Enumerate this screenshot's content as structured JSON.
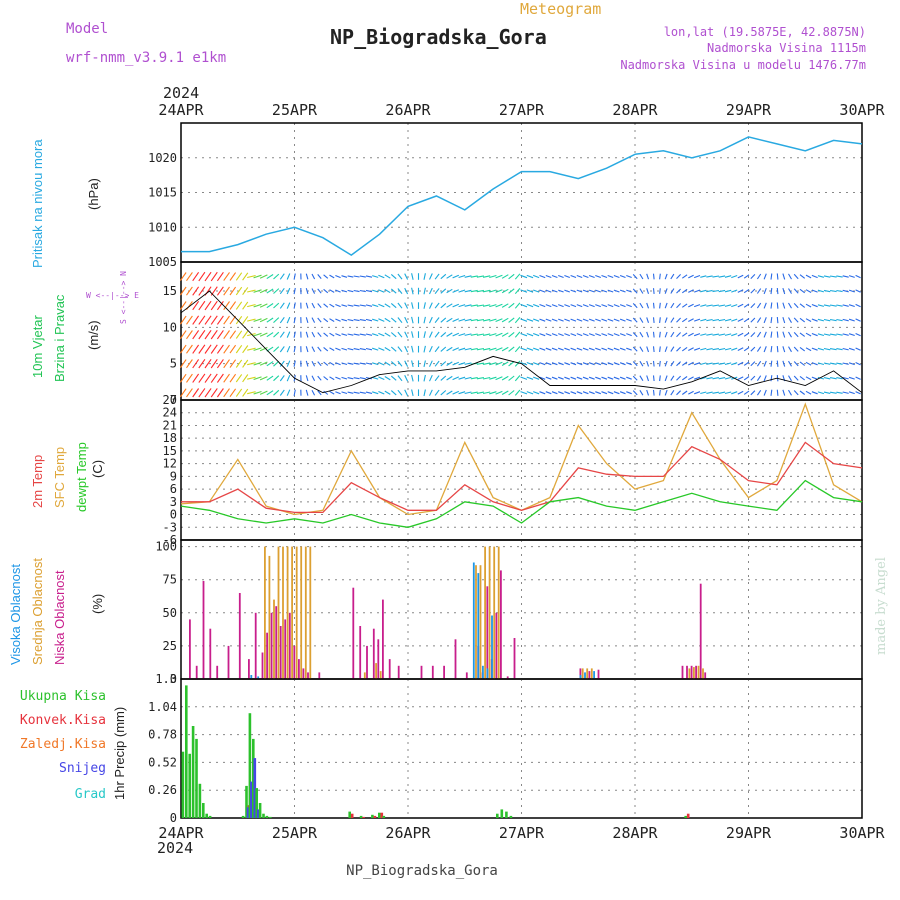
{
  "header": {
    "model_label": "Model",
    "model_name": "wrf-nmm_v3.9.1 e1km",
    "product": "Meteogram",
    "station": "NP_Biogradska_Gora",
    "coords": "lon,lat (19.5875E, 42.8875N)",
    "altitude": "Nadmorska Visina 1115m",
    "model_altitude": "Nadmorska Visina u modelu 1476.77m",
    "year_top": "2024",
    "year_bottom": "2024",
    "footer_station": "NP_Biogradska_Gora",
    "credit": "made by Angel"
  },
  "colors": {
    "pressure": "#29a9e1",
    "precip_total": "#2cc12c",
    "precip_conv": "#e6323c",
    "precip_frozen": "#f07828",
    "snow": "#4646e6",
    "graupel": "#28c8c8",
    "temp_2m": "#e64646",
    "temp_sfc": "#e0a83c",
    "dewpoint": "#28c828",
    "cloud_high": "#1e96e6",
    "cloud_mid": "#dca032",
    "cloud_low": "#c81e8c",
    "wind_label": "#22c455",
    "wind_axis": "#b050d0"
  },
  "chart_data": [
    {
      "type": "line",
      "panel": "pressure",
      "ylabel_1": "Pritisak na nivou mora",
      "ylabel_2": "(hPa)",
      "ylim": [
        1005,
        1025
      ],
      "yticks": [
        1005,
        1010,
        1015,
        1020
      ],
      "x_unit": "day offset from 24APR 00 UTC",
      "x": [
        0,
        0.25,
        0.5,
        0.75,
        1.0,
        1.25,
        1.5,
        1.75,
        2.0,
        2.25,
        2.5,
        2.75,
        3.0,
        3.25,
        3.5,
        3.75,
        4.0,
        4.25,
        4.5,
        4.75,
        5.0,
        5.25,
        5.5,
        5.75,
        6.0
      ],
      "series": [
        {
          "values": [
            1006.5,
            1006.5,
            1007.5,
            1009.0,
            1010.0,
            1008.5,
            1006.0,
            1009.0,
            1013.0,
            1014.5,
            1012.5,
            1015.5,
            1018.0,
            1018.0,
            1017.0,
            1018.5,
            1020.5,
            1021.0,
            1020.0,
            1021.0,
            1023.0,
            1022.0,
            1021.0,
            1022.5,
            1022.0
          ]
        }
      ]
    },
    {
      "type": "line",
      "panel": "wind",
      "ylabel_1": "10m Vjetar",
      "ylabel_2": "Brzina i Pravac",
      "ylabel_3": "(m/s)",
      "compass": "W <--|--> E",
      "compass_vertical": "S <--|--> N",
      "ylim": [
        0,
        19
      ],
      "yticks": [
        0,
        5,
        10,
        15
      ],
      "x_unit": "day offset from 24APR 00 UTC",
      "x": [
        0,
        0.25,
        0.5,
        0.75,
        1.0,
        1.25,
        1.5,
        1.75,
        2.0,
        2.25,
        2.5,
        2.75,
        3.0,
        3.25,
        3.5,
        3.75,
        4.0,
        4.25,
        4.5,
        4.75,
        5.0,
        5.25,
        5.5,
        5.75,
        6.0
      ],
      "series": [
        {
          "values": [
            12,
            15,
            11,
            7,
            3,
            1,
            2,
            3.5,
            4,
            4,
            4.5,
            6,
            5,
            2,
            2,
            2,
            2,
            1.5,
            2.5,
            4,
            2,
            3,
            2,
            4,
            1
          ]
        }
      ]
    },
    {
      "type": "line",
      "panel": "temperature",
      "ylabel_1": "2m Temp",
      "ylabel_2": "SFC Temp",
      "ylabel_3": "dewpt Temp",
      "ylabel_4": "(C)",
      "ylim": [
        -6,
        27
      ],
      "yticks": [
        -6,
        -3,
        0,
        3,
        6,
        9,
        12,
        15,
        18,
        21,
        24,
        27
      ],
      "x_unit": "day offset from 24APR 00 UTC",
      "x": [
        0,
        0.25,
        0.5,
        0.75,
        1.0,
        1.25,
        1.5,
        1.75,
        2.0,
        2.25,
        2.5,
        2.75,
        3.0,
        3.25,
        3.5,
        3.75,
        4.0,
        4.25,
        4.5,
        4.75,
        5.0,
        5.25,
        5.5,
        5.75,
        6.0
      ],
      "series": [
        {
          "name": "2m Temp",
          "values": [
            3,
            3,
            6,
            1.5,
            0.5,
            0.5,
            7.5,
            4,
            1,
            1,
            7,
            3,
            1,
            3,
            11,
            9.5,
            9,
            9,
            16,
            13,
            8,
            7,
            17,
            12,
            11
          ]
        },
        {
          "name": "SFC Temp",
          "values": [
            2.5,
            3,
            13,
            2,
            0,
            1,
            15,
            4,
            0,
            1,
            17,
            4,
            1,
            4,
            21,
            12,
            6,
            8,
            24,
            13,
            4,
            8,
            26,
            7,
            3
          ]
        },
        {
          "name": "dewpt Temp",
          "values": [
            2,
            1,
            -1,
            -2,
            -1,
            -2,
            0,
            -2,
            -3,
            -1,
            3,
            2,
            -2,
            3,
            4,
            2,
            1,
            3,
            5,
            3,
            2,
            1,
            8,
            4,
            3
          ]
        }
      ]
    },
    {
      "type": "bar",
      "panel": "cloud",
      "ylabel_1": "Visoka Oblacnost",
      "ylabel_2": "Srednja Oblacnost",
      "ylabel_3": "Niska Oblacnost",
      "ylabel_4": "(%)",
      "ylim": [
        0,
        105
      ],
      "yticks": [
        0,
        25,
        50,
        75,
        100
      ],
      "x_unit": "day offset from 24APR 00 UTC",
      "x": [
        0.06,
        0.12,
        0.18,
        0.24,
        0.3,
        0.4,
        0.5,
        0.58,
        0.64,
        0.7,
        0.74,
        0.78,
        0.82,
        0.86,
        0.9,
        0.94,
        0.98,
        1.02,
        1.06,
        1.1,
        1.14,
        1.2,
        1.5,
        1.56,
        1.62,
        1.68,
        1.72,
        1.76,
        1.82,
        1.9,
        2.1,
        2.2,
        2.3,
        2.4,
        2.5,
        2.6,
        2.64,
        2.68,
        2.72,
        2.76,
        2.8,
        2.86,
        2.92,
        3.46,
        3.5,
        3.54,
        3.58,
        3.62,
        3.66,
        4.4,
        4.44,
        4.48,
        4.52,
        4.56,
        4.6,
        4.64
      ],
      "series": [
        {
          "name": "Visoka Oblacnost",
          "values": [
            0,
            0,
            0,
            0,
            0,
            0,
            0,
            0,
            3,
            2,
            0,
            0,
            0,
            0,
            0,
            0,
            0,
            0,
            0,
            0,
            0,
            0,
            0,
            0,
            0,
            0,
            0,
            0,
            0,
            0,
            0,
            0,
            0,
            0,
            0,
            88,
            80,
            10,
            8,
            48,
            0,
            0,
            0,
            0,
            0,
            3,
            5,
            0,
            6,
            0,
            0,
            0,
            0,
            0,
            0,
            0
          ]
        },
        {
          "name": "Srednja Oblacnost",
          "values": [
            0,
            0,
            0,
            0,
            0,
            0,
            0,
            0,
            0,
            0,
            100,
            93,
            60,
            100,
            100,
            100,
            100,
            100,
            100,
            100,
            100,
            0,
            0,
            0,
            5,
            0,
            12,
            6,
            0,
            0,
            0,
            0,
            0,
            0,
            0,
            86,
            86,
            100,
            100,
            100,
            100,
            0,
            0,
            0,
            0,
            8,
            8,
            8,
            0,
            0,
            0,
            8,
            9,
            10,
            8,
            0
          ]
        },
        {
          "name": "Niska Oblacnost",
          "values": [
            45,
            10,
            74,
            38,
            10,
            25,
            65,
            15,
            50,
            20,
            35,
            50,
            55,
            40,
            45,
            50,
            25,
            15,
            8,
            5,
            0,
            5,
            69,
            40,
            25,
            38,
            30,
            60,
            15,
            10,
            10,
            10,
            10,
            30,
            5,
            25,
            5,
            70,
            15,
            50,
            82,
            2,
            31,
            0,
            8,
            0,
            6,
            0,
            7,
            10,
            10,
            10,
            10,
            72,
            5,
            0
          ]
        }
      ]
    },
    {
      "type": "bar",
      "panel": "precipitation",
      "legend": [
        "Ukupna Kisa",
        "Konvek.Kisa",
        "Zaledj.Kisa",
        "Snijeg",
        "Grad"
      ],
      "ylabel": "1hr Precip (mm)",
      "ylim": [
        0,
        1.3
      ],
      "yticks": [
        0,
        0.26,
        0.52,
        0.78,
        1.04,
        1.3
      ],
      "ytick_labels": [
        "0",
        "0.26",
        "0.52",
        "0.78",
        "1.04",
        "1.3"
      ],
      "x_unit": "day offset from 24APR 00 UTC",
      "x": [
        0.03,
        0.06,
        0.09,
        0.12,
        0.15,
        0.18,
        0.21,
        0.24,
        0.27,
        0.3,
        0.56,
        0.59,
        0.62,
        0.65,
        0.68,
        0.71,
        0.74,
        0.77,
        0.8,
        1.5,
        1.6,
        1.7,
        1.76,
        1.8,
        2.8,
        2.84,
        2.88,
        2.92,
        4.46
      ],
      "series": [
        {
          "name": "Ukupna Kisa",
          "values": [
            0.62,
            1.24,
            0.6,
            0.86,
            0.74,
            0.32,
            0.14,
            0.04,
            0.02,
            0.0,
            0.02,
            0.3,
            0.98,
            0.74,
            0.28,
            0.14,
            0.04,
            0.02,
            0.01,
            0.06,
            0.02,
            0.03,
            0.05,
            0.02,
            0.04,
            0.08,
            0.06,
            0.02,
            0.02
          ]
        },
        {
          "name": "Konvek.Kisa",
          "values": [
            0,
            0,
            0,
            0,
            0,
            0,
            0,
            0,
            0,
            0,
            0,
            0.12,
            0.1,
            0.05,
            0.01,
            0,
            0,
            0,
            0,
            0.04,
            0.01,
            0.02,
            0.05,
            0,
            0,
            0,
            0,
            0,
            0.04
          ]
        },
        {
          "name": "Snijeg",
          "values": [
            0,
            0,
            0,
            0,
            0,
            0,
            0,
            0,
            0,
            0,
            0,
            0.1,
            0.34,
            0.56,
            0.08,
            0,
            0,
            0,
            0,
            0,
            0,
            0,
            0,
            0,
            0,
            0,
            0,
            0,
            0
          ]
        }
      ]
    }
  ],
  "time_axis": {
    "labels": [
      "24APR",
      "25APR",
      "26APR",
      "27APR",
      "28APR",
      "29APR",
      "30APR"
    ],
    "days": [
      0,
      1,
      2,
      3,
      4,
      5,
      6
    ]
  }
}
